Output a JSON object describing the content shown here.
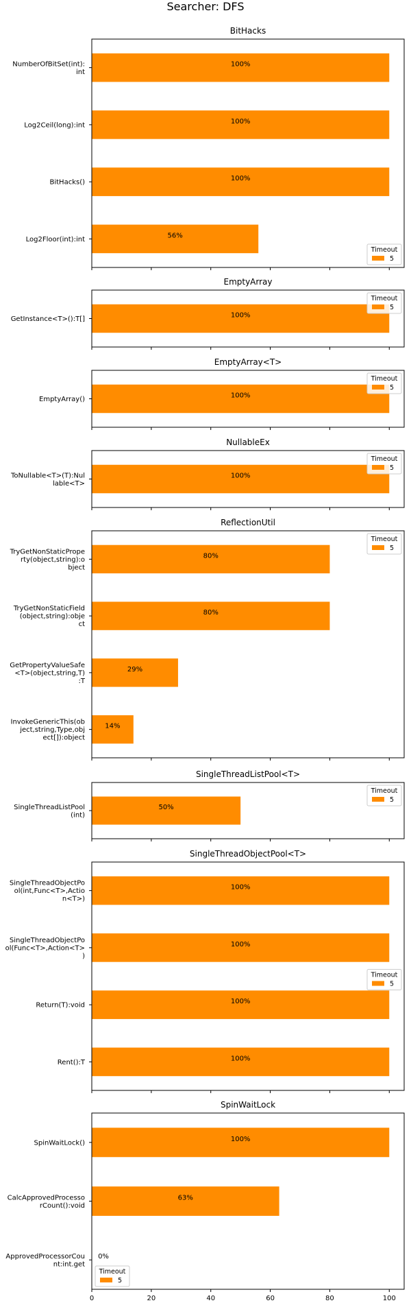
{
  "suptitle": "Searcher: DFS",
  "chart_data": [
    {
      "type": "bar",
      "orientation": "horizontal",
      "title": "BitHacks",
      "categories": [
        "NumberOfBitSet(int):\nint",
        "Log2Ceil(long):int",
        "BitHacks()",
        "Log2Floor(int):int"
      ],
      "series": [
        {
          "name": "5",
          "values": [
            100,
            100,
            100,
            56
          ]
        }
      ],
      "labels": [
        "100%",
        "100%",
        "100%",
        "56%"
      ],
      "legend": {
        "title": "Timeout",
        "entries": [
          "5"
        ],
        "placement": "lower-right"
      },
      "color": "#ff8c00",
      "xlim": [
        0,
        105
      ],
      "xticks": [
        0,
        20,
        40,
        60,
        80,
        100
      ]
    },
    {
      "type": "bar",
      "orientation": "horizontal",
      "title": "EmptyArray",
      "categories": [
        "GetInstance<T>():T[]"
      ],
      "series": [
        {
          "name": "5",
          "values": [
            100
          ]
        }
      ],
      "labels": [
        "100%"
      ],
      "legend": {
        "title": "Timeout",
        "entries": [
          "5"
        ],
        "placement": "upper-right"
      },
      "color": "#ff8c00",
      "xlim": [
        0,
        105
      ],
      "xticks": [
        0,
        20,
        40,
        60,
        80,
        100
      ]
    },
    {
      "type": "bar",
      "orientation": "horizontal",
      "title": "EmptyArray<T>",
      "categories": [
        "EmptyArray()"
      ],
      "series": [
        {
          "name": "5",
          "values": [
            100
          ]
        }
      ],
      "labels": [
        "100%"
      ],
      "legend": {
        "title": "Timeout",
        "entries": [
          "5"
        ],
        "placement": "upper-right"
      },
      "color": "#ff8c00",
      "xlim": [
        0,
        105
      ],
      "xticks": [
        0,
        20,
        40,
        60,
        80,
        100
      ]
    },
    {
      "type": "bar",
      "orientation": "horizontal",
      "title": "NullableEx",
      "categories": [
        "ToNullable<T>(T):Nul\nlable<T>"
      ],
      "series": [
        {
          "name": "5",
          "values": [
            100
          ]
        }
      ],
      "labels": [
        "100%"
      ],
      "legend": {
        "title": "Timeout",
        "entries": [
          "5"
        ],
        "placement": "upper-right"
      },
      "color": "#ff8c00",
      "xlim": [
        0,
        105
      ],
      "xticks": [
        0,
        20,
        40,
        60,
        80,
        100
      ]
    },
    {
      "type": "bar",
      "orientation": "horizontal",
      "title": "ReflectionUtil",
      "categories": [
        "TryGetNonStaticPrope\nrty(object,string):o\nbject",
        "TryGetNonStaticField\n(object,string):obje\nct",
        "GetPropertyValueSafe\n<T>(object,string,T)\n:T",
        "InvokeGenericThis(ob\nject,string,Type,obj\nect[]):object"
      ],
      "series": [
        {
          "name": "5",
          "values": [
            80,
            80,
            29,
            14
          ]
        }
      ],
      "labels": [
        "80%",
        "80%",
        "29%",
        "14%"
      ],
      "legend": {
        "title": "Timeout",
        "entries": [
          "5"
        ],
        "placement": "upper-right"
      },
      "color": "#ff8c00",
      "xlim": [
        0,
        105
      ],
      "xticks": [
        0,
        20,
        40,
        60,
        80,
        100
      ]
    },
    {
      "type": "bar",
      "orientation": "horizontal",
      "title": "SingleThreadListPool<T>",
      "categories": [
        "SingleThreadListPool\n(int)"
      ],
      "series": [
        {
          "name": "5",
          "values": [
            50
          ]
        }
      ],
      "labels": [
        "50%"
      ],
      "legend": {
        "title": "Timeout",
        "entries": [
          "5"
        ],
        "placement": "upper-right"
      },
      "color": "#ff8c00",
      "xlim": [
        0,
        105
      ],
      "xticks": [
        0,
        20,
        40,
        60,
        80,
        100
      ]
    },
    {
      "type": "bar",
      "orientation": "horizontal",
      "title": "SingleThreadObjectPool<T>",
      "categories": [
        "SingleThreadObjectPo\nol(int,Func<T>,Actio\nn<T>)",
        "SingleThreadObjectPo\nol(Func<T>,Action<T>\n)",
        "Return(T):void",
        "Rent():T"
      ],
      "series": [
        {
          "name": "5",
          "values": [
            100,
            100,
            100,
            100
          ]
        }
      ],
      "labels": [
        "100%",
        "100%",
        "100%",
        "100%"
      ],
      "legend": {
        "title": "Timeout",
        "entries": [
          "5"
        ],
        "placement": "center-right"
      },
      "color": "#ff8c00",
      "xlim": [
        0,
        105
      ],
      "xticks": [
        0,
        20,
        40,
        60,
        80,
        100
      ]
    },
    {
      "type": "bar",
      "orientation": "horizontal",
      "title": "SpinWaitLock",
      "categories": [
        "SpinWaitLock()",
        "CalcApprovedProcesso\nrCount():void",
        "ApprovedProcessorCou\nnt:int.get"
      ],
      "series": [
        {
          "name": "5",
          "values": [
            100,
            63,
            0
          ]
        }
      ],
      "labels": [
        "100%",
        "63%",
        "0%"
      ],
      "legend": {
        "title": "Timeout",
        "entries": [
          "5"
        ],
        "placement": "lower-left"
      },
      "color": "#ff8c00",
      "xlim": [
        0,
        105
      ],
      "xticks": [
        0,
        20,
        40,
        60,
        80,
        100
      ],
      "xticklabels": [
        "0",
        "20",
        "40",
        "60",
        "80",
        "100"
      ]
    }
  ]
}
